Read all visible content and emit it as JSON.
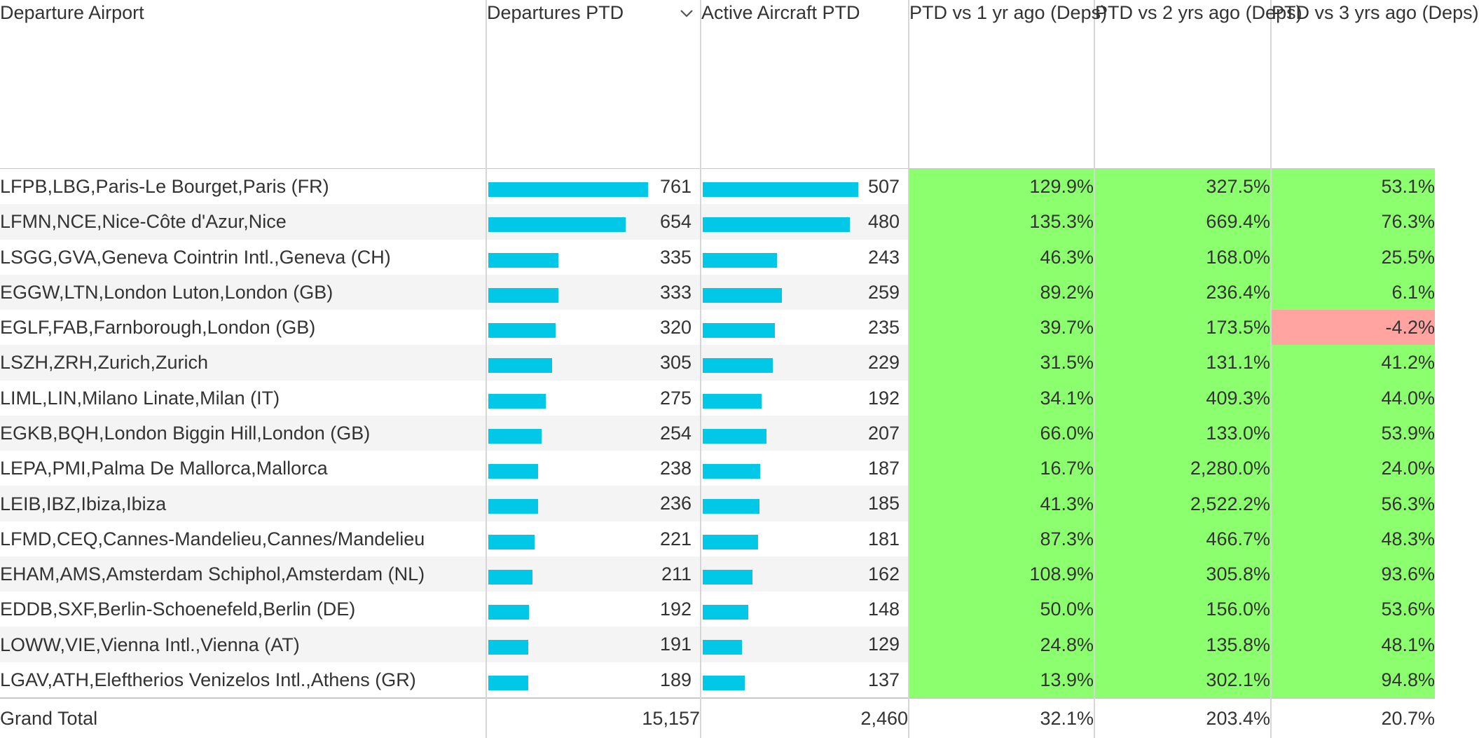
{
  "columns": {
    "airport": "Departure Airport",
    "departures": "Departures PTD",
    "aircraft": "Active Aircraft PTD",
    "vs1": "PTD vs 1 yr ago (Deps)",
    "vs2": "PTD vs 2 yrs ago (Deps)",
    "vs3": "PTD vs 3 yrs ago (Deps)"
  },
  "sort_icon": "chevron-down-icon",
  "colors": {
    "bar": "#00c8e6",
    "positive": "#8cff6e",
    "negative": "#ffa4a0"
  },
  "chart_data": {
    "type": "table",
    "bar_columns": [
      "Departures PTD",
      "Active Aircraft PTD"
    ],
    "bar_max": {
      "departures": 761,
      "aircraft": 507
    },
    "rows": [
      {
        "airport": "LFPB,LBG,Paris-Le Bourget,Paris (FR)",
        "departures": 761,
        "departures_text": "761",
        "aircraft": 507,
        "aircraft_text": "507",
        "vs1": "129.9%",
        "vs2": "327.5%",
        "vs3": "53.1%",
        "vs3_neg": false
      },
      {
        "airport": "LFMN,NCE,Nice-Côte d'Azur,Nice",
        "departures": 654,
        "departures_text": "654",
        "aircraft": 480,
        "aircraft_text": "480",
        "vs1": "135.3%",
        "vs2": "669.4%",
        "vs3": "76.3%",
        "vs3_neg": false
      },
      {
        "airport": "LSGG,GVA,Geneva Cointrin Intl.,Geneva (CH)",
        "departures": 335,
        "departures_text": "335",
        "aircraft": 243,
        "aircraft_text": "243",
        "vs1": "46.3%",
        "vs2": "168.0%",
        "vs3": "25.5%",
        "vs3_neg": false
      },
      {
        "airport": "EGGW,LTN,London Luton,London (GB)",
        "departures": 333,
        "departures_text": "333",
        "aircraft": 259,
        "aircraft_text": "259",
        "vs1": "89.2%",
        "vs2": "236.4%",
        "vs3": "6.1%",
        "vs3_neg": false
      },
      {
        "airport": "EGLF,FAB,Farnborough,London (GB)",
        "departures": 320,
        "departures_text": "320",
        "aircraft": 235,
        "aircraft_text": "235",
        "vs1": "39.7%",
        "vs2": "173.5%",
        "vs3": "-4.2%",
        "vs3_neg": true
      },
      {
        "airport": "LSZH,ZRH,Zurich,Zurich",
        "departures": 305,
        "departures_text": "305",
        "aircraft": 229,
        "aircraft_text": "229",
        "vs1": "31.5%",
        "vs2": "131.1%",
        "vs3": "41.2%",
        "vs3_neg": false
      },
      {
        "airport": "LIML,LIN,Milano Linate,Milan (IT)",
        "departures": 275,
        "departures_text": "275",
        "aircraft": 192,
        "aircraft_text": "192",
        "vs1": "34.1%",
        "vs2": "409.3%",
        "vs3": "44.0%",
        "vs3_neg": false
      },
      {
        "airport": "EGKB,BQH,London Biggin Hill,London (GB)",
        "departures": 254,
        "departures_text": "254",
        "aircraft": 207,
        "aircraft_text": "207",
        "vs1": "66.0%",
        "vs2": "133.0%",
        "vs3": "53.9%",
        "vs3_neg": false
      },
      {
        "airport": "LEPA,PMI,Palma De Mallorca,Mallorca",
        "departures": 238,
        "departures_text": "238",
        "aircraft": 187,
        "aircraft_text": "187",
        "vs1": "16.7%",
        "vs2": "2,280.0%",
        "vs3": "24.0%",
        "vs3_neg": false
      },
      {
        "airport": "LEIB,IBZ,Ibiza,Ibiza",
        "departures": 236,
        "departures_text": "236",
        "aircraft": 185,
        "aircraft_text": "185",
        "vs1": "41.3%",
        "vs2": "2,522.2%",
        "vs3": "56.3%",
        "vs3_neg": false
      },
      {
        "airport": "LFMD,CEQ,Cannes-Mandelieu,Cannes/Mandelieu",
        "departures": 221,
        "departures_text": "221",
        "aircraft": 181,
        "aircraft_text": "181",
        "vs1": "87.3%",
        "vs2": "466.7%",
        "vs3": "48.3%",
        "vs3_neg": false
      },
      {
        "airport": "EHAM,AMS,Amsterdam Schiphol,Amsterdam (NL)",
        "departures": 211,
        "departures_text": "211",
        "aircraft": 162,
        "aircraft_text": "162",
        "vs1": "108.9%",
        "vs2": "305.8%",
        "vs3": "93.6%",
        "vs3_neg": false
      },
      {
        "airport": "EDDB,SXF,Berlin-Schoenefeld,Berlin (DE)",
        "departures": 192,
        "departures_text": "192",
        "aircraft": 148,
        "aircraft_text": "148",
        "vs1": "50.0%",
        "vs2": "156.0%",
        "vs3": "53.6%",
        "vs3_neg": false
      },
      {
        "airport": "LOWW,VIE,Vienna Intl.,Vienna (AT)",
        "departures": 191,
        "departures_text": "191",
        "aircraft": 129,
        "aircraft_text": "129",
        "vs1": "24.8%",
        "vs2": "135.8%",
        "vs3": "48.1%",
        "vs3_neg": false
      },
      {
        "airport": "LGAV,ATH,Eleftherios Venizelos Intl.,Athens (GR)",
        "departures": 189,
        "departures_text": "189",
        "aircraft": 137,
        "aircraft_text": "137",
        "vs1": "13.9%",
        "vs2": "302.1%",
        "vs3": "94.8%",
        "vs3_neg": false
      }
    ],
    "total": {
      "label": "Grand Total",
      "departures": "15,157",
      "aircraft": "2,460",
      "vs1": "32.1%",
      "vs2": "203.4%",
      "vs3": "20.7%"
    }
  }
}
